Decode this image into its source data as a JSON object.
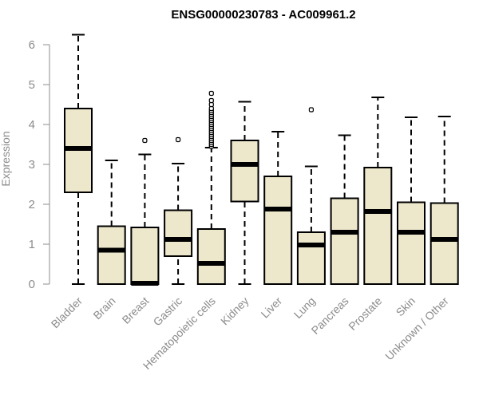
{
  "chart_data": {
    "type": "box",
    "title": "ENSG00000230783 - AC009961.2",
    "xlabel": "",
    "ylabel": "Expression",
    "ylim": [
      0,
      6.3
    ],
    "yticks": [
      0,
      1,
      2,
      3,
      4,
      5,
      6
    ],
    "grid": false,
    "colors": {
      "box_fill": "#ede7cc",
      "stroke": "#000000",
      "axis_text": "#8c8c8c"
    },
    "categories": [
      "Bladder",
      "Brain",
      "Breast",
      "Gastric",
      "Hematopoietic cells",
      "Kidney",
      "Liver",
      "Lung",
      "Pancreas",
      "Prostate",
      "Skin",
      "Unknown / Other"
    ],
    "boxes": [
      {
        "min": 0,
        "q1": 2.3,
        "median": 3.4,
        "q3": 4.4,
        "max": 6.25,
        "outliers": []
      },
      {
        "min": 0,
        "q1": 0,
        "median": 0.85,
        "q3": 1.45,
        "max": 3.1,
        "outliers": []
      },
      {
        "min": 0,
        "q1": 0,
        "median": 0.02,
        "q3": 1.42,
        "max": 3.25,
        "outliers": [
          3.6
        ]
      },
      {
        "min": 0,
        "q1": 0.7,
        "median": 1.12,
        "q3": 1.85,
        "max": 3.02,
        "outliers": [
          3.62
        ]
      },
      {
        "min": 0,
        "q1": 0,
        "median": 0.52,
        "q3": 1.38,
        "max": 3.42,
        "outliers": [
          3.45,
          3.5,
          3.55,
          3.6,
          3.65,
          3.7,
          3.75,
          3.8,
          3.85,
          3.9,
          3.95,
          4.0,
          4.05,
          4.1,
          4.15,
          4.2,
          4.25,
          4.3,
          4.35,
          4.4,
          4.5,
          4.6,
          4.78
        ]
      },
      {
        "min": 0,
        "q1": 2.07,
        "median": 3.0,
        "q3": 3.6,
        "max": 4.57,
        "outliers": []
      },
      {
        "min": 0,
        "q1": 0,
        "median": 1.88,
        "q3": 2.7,
        "max": 3.82,
        "outliers": []
      },
      {
        "min": 0,
        "q1": 0,
        "median": 0.98,
        "q3": 1.3,
        "max": 2.95,
        "outliers": [
          4.37
        ]
      },
      {
        "min": 0,
        "q1": 0,
        "median": 1.3,
        "q3": 2.15,
        "max": 3.73,
        "outliers": []
      },
      {
        "min": 0,
        "q1": 0,
        "median": 1.82,
        "q3": 2.92,
        "max": 4.68,
        "outliers": []
      },
      {
        "min": 0,
        "q1": 0,
        "median": 1.3,
        "q3": 2.05,
        "max": 4.18,
        "outliers": []
      },
      {
        "min": 0,
        "q1": 0,
        "median": 1.12,
        "q3": 2.03,
        "max": 4.2,
        "outliers": []
      }
    ]
  }
}
